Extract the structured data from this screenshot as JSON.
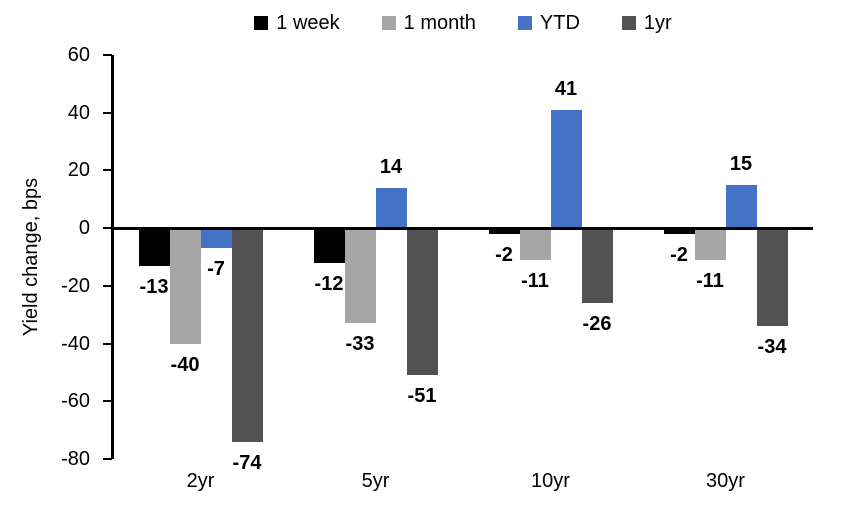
{
  "chart_data": {
    "type": "bar",
    "title": "",
    "xlabel": "",
    "ylabel": "Yield change, bps",
    "categories": [
      "2yr",
      "5yr",
      "10yr",
      "30yr"
    ],
    "series": [
      {
        "name": "1 week",
        "color": "#000000",
        "values": [
          -13,
          -12,
          -2,
          -2
        ]
      },
      {
        "name": "1 month",
        "color": "#A6A6A6",
        "values": [
          -40,
          -33,
          -11,
          -11
        ]
      },
      {
        "name": "YTD",
        "color": "#4472C4",
        "values": [
          -7,
          14,
          41,
          15
        ]
      },
      {
        "name": "1yr",
        "color": "#525252",
        "values": [
          -74,
          -51,
          -26,
          -34
        ]
      }
    ],
    "ylim": [
      -80,
      60
    ],
    "yticks": [
      60,
      40,
      20,
      0,
      -20,
      -40,
      -60,
      -80
    ],
    "grid": false,
    "legend_position": "top",
    "data_labels": "outside-end",
    "axis_color": "#000000",
    "background_color": "#FFFFFF"
  }
}
